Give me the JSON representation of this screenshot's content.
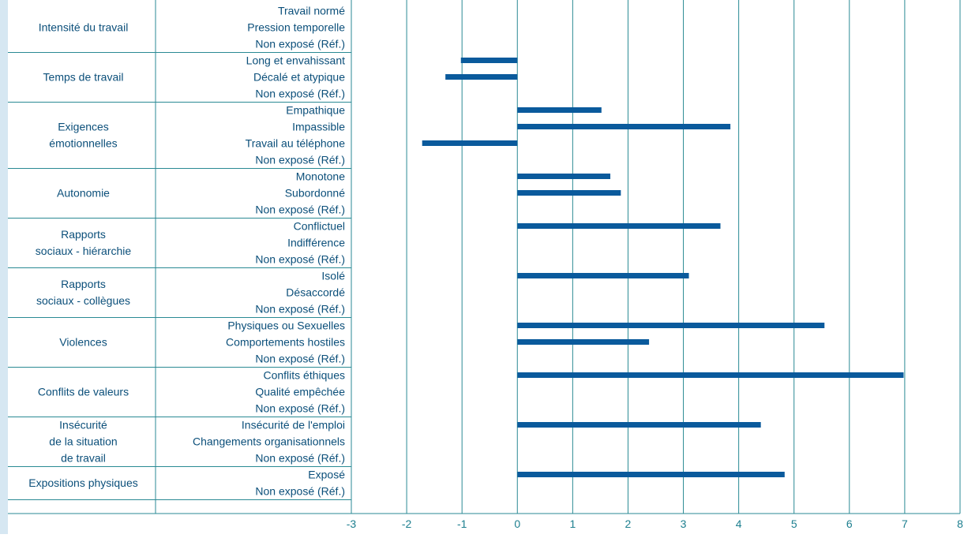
{
  "colors": {
    "grid": "#2a8a94",
    "bar": "#0a5a9c",
    "text": "#0b4f7a",
    "tick_text": "#1d7f8f",
    "strip": "#d6e7f2"
  },
  "chart_data": {
    "type": "bar",
    "orientation": "horizontal",
    "title": "",
    "xlabel": "",
    "ylabel": "",
    "xlim": [
      -3,
      8
    ],
    "x_ticks": [
      "-3",
      "-2",
      "-1",
      "0",
      "1",
      "2",
      "3",
      "4",
      "5",
      "6",
      "7",
      "8"
    ],
    "grid": true,
    "groups": [
      {
        "label": [
          "Intensité du travail"
        ],
        "items": [
          {
            "label": "Travail normé",
            "value": null
          },
          {
            "label": "Pression temporelle",
            "value": null
          },
          {
            "label": "Non exposé (Réf.)",
            "value": null
          }
        ]
      },
      {
        "label": [
          "Temps de travail"
        ],
        "items": [
          {
            "label": "Long et envahissant",
            "value": -1.02
          },
          {
            "label": "Décalé et atypique",
            "value": -1.3
          },
          {
            "label": "Non exposé (Réf.)",
            "value": null
          }
        ]
      },
      {
        "label": [
          "Exigences",
          "émotionnelles"
        ],
        "items": [
          {
            "label": "Empathique",
            "value": 1.52
          },
          {
            "label": "Impassible",
            "value": 3.85
          },
          {
            "label": "Travail au téléphone",
            "value": -1.72
          },
          {
            "label": "Non exposé (Réf.)",
            "value": null
          }
        ]
      },
      {
        "label": [
          "Autonomie"
        ],
        "items": [
          {
            "label": "Monotone",
            "value": 1.68
          },
          {
            "label": "Subordonné",
            "value": 1.87
          },
          {
            "label": "Non exposé (Réf.)",
            "value": null
          }
        ]
      },
      {
        "label": [
          "Rapports",
          "sociaux - hiérarchie"
        ],
        "items": [
          {
            "label": "Conflictuel",
            "value": 3.67
          },
          {
            "label": "Indifférence",
            "value": null
          },
          {
            "label": "Non exposé (Réf.)",
            "value": null
          }
        ]
      },
      {
        "label": [
          "Rapports",
          "sociaux - collègues"
        ],
        "items": [
          {
            "label": "Isolé",
            "value": 3.1
          },
          {
            "label": "Désaccordé",
            "value": null
          },
          {
            "label": "Non exposé (Réf.)",
            "value": null
          }
        ]
      },
      {
        "label": [
          "Violences"
        ],
        "items": [
          {
            "label": "Physiques ou Sexuelles",
            "value": 5.55
          },
          {
            "label": "Comportements hostiles",
            "value": 2.38
          },
          {
            "label": "Non exposé (Réf.)",
            "value": null
          }
        ]
      },
      {
        "label": [
          "Conflits de valeurs"
        ],
        "items": [
          {
            "label": "Conflits éthiques",
            "value": 6.98
          },
          {
            "label": "Qualité empêchée",
            "value": null
          },
          {
            "label": "Non exposé (Réf.)",
            "value": null
          }
        ]
      },
      {
        "label": [
          "Insécurité",
          "de la situation",
          "de travail"
        ],
        "items": [
          {
            "label": "Insécurité de l'emploi",
            "value": 4.4
          },
          {
            "label": "Changements organisationnels",
            "value": null
          },
          {
            "label": "Non exposé (Réf.)",
            "value": null
          }
        ]
      },
      {
        "label": [
          "Expositions physiques"
        ],
        "items": [
          {
            "label": "Exposé",
            "value": 4.83
          },
          {
            "label": "Non exposé (Réf.)",
            "value": null
          }
        ]
      }
    ]
  }
}
